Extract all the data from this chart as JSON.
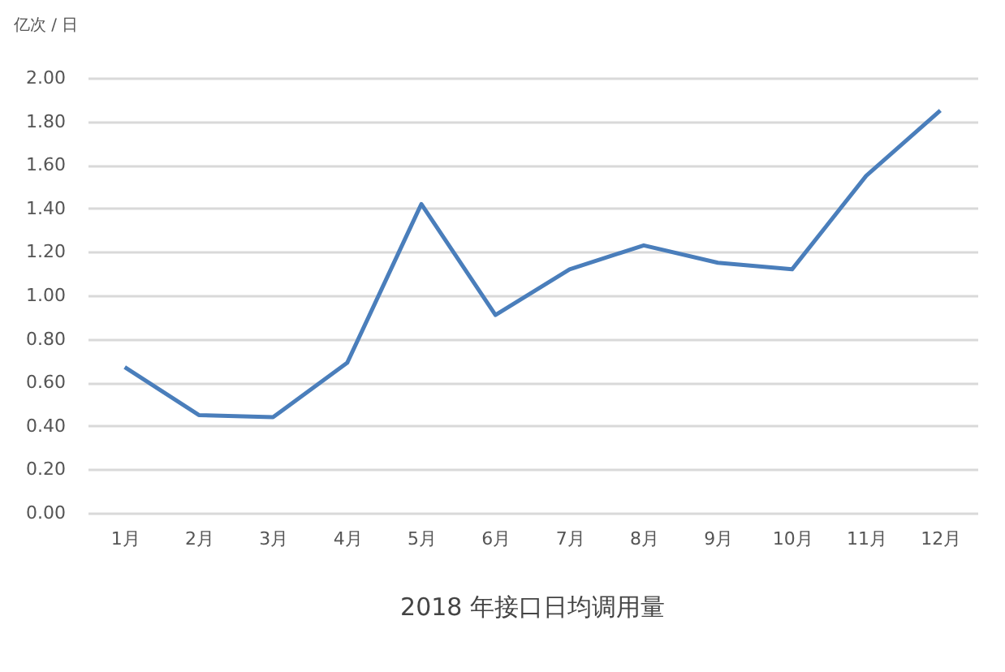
{
  "chart_data": {
    "type": "line",
    "title": "2018 年接口日均调用量",
    "ylabel": "亿次 / 日",
    "categories": [
      "1月",
      "2月",
      "3月",
      "4月",
      "5月",
      "6月",
      "7月",
      "8月",
      "9月",
      "10月",
      "11月",
      "12月"
    ],
    "series": [
      {
        "color": "#4a7ebb",
        "values": [
          0.67,
          0.45,
          0.44,
          0.69,
          1.42,
          0.91,
          1.12,
          1.23,
          1.15,
          1.12,
          1.55,
          1.85
        ]
      }
    ],
    "ylim": [
      0,
      2
    ],
    "yticks": [
      {
        "value": 0,
        "label": "0.00"
      },
      {
        "value": 0.2,
        "label": "0.20"
      },
      {
        "value": 0.4,
        "label": "0.40"
      },
      {
        "value": 0.6,
        "label": "0.60"
      },
      {
        "value": 0.8,
        "label": "0.80"
      },
      {
        "value": 1,
        "label": "1.00"
      },
      {
        "value": 1.2,
        "label": "1.20"
      },
      {
        "value": 1.4,
        "label": "1.40"
      },
      {
        "value": 1.6,
        "label": "1.60"
      },
      {
        "value": 1.8,
        "label": "1.80"
      },
      {
        "value": 2,
        "label": "2.00"
      }
    ],
    "grid": "y",
    "marker": "none",
    "line_style": "solid"
  }
}
